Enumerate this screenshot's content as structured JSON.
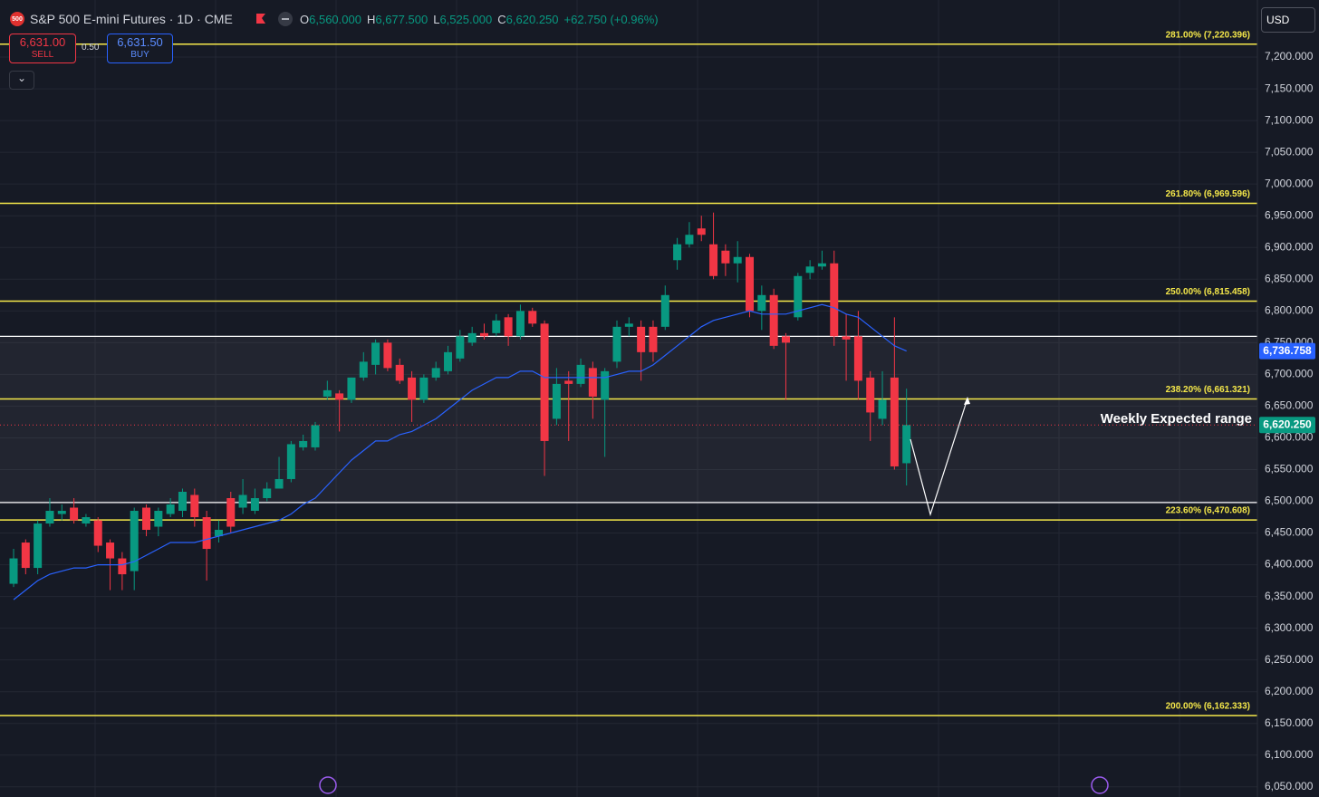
{
  "header": {
    "logo": "500",
    "symbol": "S&P 500 E-mini Futures · 1D · CME",
    "ohlc": [
      {
        "key": "O",
        "value": "6,560.000"
      },
      {
        "key": "H",
        "value": "6,677.500"
      },
      {
        "key": "L",
        "value": "6,525.000"
      },
      {
        "key": "C",
        "value": "6,620.250"
      }
    ],
    "change": "+62.750 (+0.96%)"
  },
  "trade": {
    "sell_price": "6,631.00",
    "sell": "SELL",
    "spread": "0.50",
    "buy_price": "6,631.50",
    "buy": "BUY"
  },
  "currency": "USD",
  "chart_data": {
    "type": "candlestick",
    "up_color": "#089981",
    "down_color": "#f23645",
    "open": [
      6370,
      6435,
      6395,
      6465,
      6480,
      6490,
      6465,
      6470,
      6435,
      6410,
      6390,
      6490,
      6460,
      6480,
      6485,
      6510,
      6475,
      6445,
      6505,
      6490,
      6485,
      6505,
      6520,
      6535,
      6585,
      6585,
      6665,
      6670,
      6660,
      6695,
      6715,
      6750,
      6715,
      6695,
      6660,
      6695,
      6705,
      6725,
      6750,
      6765,
      6765,
      6790,
      6760,
      6800,
      6780,
      6630,
      6690,
      6685,
      6710,
      6660,
      6720,
      6775,
      6775,
      6775,
      6775,
      6880,
      6905,
      6930,
      6905,
      6895,
      6875,
      6885,
      6800,
      6825,
      6760,
      6790,
      6860,
      6870,
      6875,
      6760,
      6760,
      6695,
      6630,
      6695,
      6560
    ],
    "high": [
      6425,
      6440,
      6470,
      6505,
      6495,
      6505,
      6480,
      6475,
      6440,
      6420,
      6490,
      6495,
      6490,
      6505,
      6520,
      6520,
      6485,
      6470,
      6515,
      6535,
      6520,
      6530,
      6570,
      6595,
      6605,
      6625,
      6690,
      6675,
      6695,
      6735,
      6755,
      6755,
      6725,
      6705,
      6700,
      6720,
      6745,
      6770,
      6775,
      6780,
      6795,
      6795,
      6810,
      6805,
      6785,
      6710,
      6705,
      6725,
      6720,
      6710,
      6785,
      6790,
      6785,
      6785,
      6840,
      6915,
      6940,
      6950,
      6955,
      6905,
      6910,
      6890,
      6840,
      6835,
      6765,
      6860,
      6880,
      6895,
      6895,
      6795,
      6800,
      6705,
      6705,
      6790,
      6677.5
    ],
    "low": [
      6365,
      6385,
      6385,
      6460,
      6470,
      6465,
      6460,
      6420,
      6360,
      6360,
      6360,
      6445,
      6445,
      6475,
      6475,
      6460,
      6375,
      6435,
      6450,
      6480,
      6480,
      6500,
      6520,
      6530,
      6580,
      6580,
      6660,
      6610,
      6655,
      6690,
      6700,
      6705,
      6685,
      6625,
      6655,
      6690,
      6700,
      6720,
      6745,
      6755,
      6760,
      6745,
      6755,
      6775,
      6540,
      6620,
      6595,
      6680,
      6630,
      6570,
      6710,
      6760,
      6690,
      6720,
      6770,
      6865,
      6900,
      6910,
      6850,
      6855,
      6845,
      6790,
      6770,
      6740,
      6660,
      6785,
      6850,
      6865,
      6745,
      6690,
      6660,
      6595,
      6620,
      6550,
      6525
    ],
    "close": [
      6410,
      6395,
      6465,
      6485,
      6485,
      6470,
      6475,
      6430,
      6410,
      6385,
      6485,
      6455,
      6485,
      6495,
      6515,
      6475,
      6425,
      6455,
      6460,
      6510,
      6505,
      6520,
      6535,
      6590,
      6595,
      6620,
      6675,
      6660,
      6695,
      6720,
      6750,
      6710,
      6690,
      6660,
      6695,
      6710,
      6735,
      6760,
      6765,
      6760,
      6785,
      6760,
      6800,
      6780,
      6595,
      6685,
      6685,
      6715,
      6665,
      6705,
      6775,
      6780,
      6735,
      6735,
      6825,
      6905,
      6920,
      6920,
      6855,
      6875,
      6885,
      6800,
      6825,
      6745,
      6750,
      6855,
      6870,
      6875,
      6760,
      6755,
      6690,
      6640,
      6660,
      6555,
      6620.25
    ],
    "ma": {
      "color": "#2962ff",
      "values": [
        6345,
        6360,
        6375,
        6385,
        6390,
        6395,
        6395,
        6400,
        6400,
        6400,
        6405,
        6415,
        6425,
        6435,
        6435,
        6435,
        6440,
        6445,
        6450,
        6455,
        6460,
        6465,
        6470,
        6480,
        6495,
        6505,
        6525,
        6545,
        6565,
        6580,
        6595,
        6595,
        6605,
        6610,
        6620,
        6630,
        6645,
        6660,
        6675,
        6685,
        6695,
        6695,
        6705,
        6705,
        6695,
        6695,
        6695,
        6695,
        6695,
        6695,
        6700,
        6705,
        6705,
        6715,
        6730,
        6745,
        6760,
        6775,
        6785,
        6790,
        6795,
        6800,
        6795,
        6795,
        6795,
        6800,
        6805,
        6810,
        6805,
        6795,
        6790,
        6775,
        6760,
        6745,
        6736.758
      ]
    },
    "levels": [
      {
        "label": "281.00% (7,220.396)",
        "value": 7220.396
      },
      {
        "label": "261.80% (6,969.596)",
        "value": 6969.596
      },
      {
        "label": "250.00% (6,815.458)",
        "value": 6815.458
      },
      {
        "label": "238.20% (6,661.321)",
        "value": 6661.321
      },
      {
        "label": "223.60% (6,470.608)",
        "value": 6470.608
      },
      {
        "label": "200.00% (6,162.333)",
        "value": 6162.333
      }
    ],
    "level_color": "#f5e84a",
    "range": {
      "label": "Weekly Expected range",
      "values": [
        6760,
        6498
      ]
    },
    "price_labels": [
      {
        "value": 6736.758,
        "label": "6,736.758",
        "color": "#2962ff"
      },
      {
        "value": 6620.25,
        "label": "6,620.250",
        "color": "#089981"
      }
    ],
    "ylim": [
      6034,
      7290
    ],
    "yticks": [
      {
        "value": 6050,
        "label": "6,050.000"
      },
      {
        "value": 6100,
        "label": "6,100.000"
      },
      {
        "value": 6150,
        "label": "6,150.000"
      },
      {
        "value": 6200,
        "label": "6,200.000"
      },
      {
        "value": 6250,
        "label": "6,250.000"
      },
      {
        "value": 6300,
        "label": "6,300.000"
      },
      {
        "value": 6350,
        "label": "6,350.000"
      },
      {
        "value": 6400,
        "label": "6,400.000"
      },
      {
        "value": 6450,
        "label": "6,450.000"
      },
      {
        "value": 6500,
        "label": "6,500.000"
      },
      {
        "value": 6550,
        "label": "6,550.000"
      },
      {
        "value": 6600,
        "label": "6,600.000"
      },
      {
        "value": 6650,
        "label": "6,650.000"
      },
      {
        "value": 6700,
        "label": "6,700.000"
      },
      {
        "value": 6750,
        "label": "6,750.000"
      },
      {
        "value": 6800,
        "label": "6,800.000"
      },
      {
        "value": 6850,
        "label": "6,850.000"
      },
      {
        "value": 6900,
        "label": "6,900.000"
      },
      {
        "value": 6950,
        "label": "6,950.000"
      },
      {
        "value": 7000,
        "label": "7,000.000"
      },
      {
        "value": 7050,
        "label": "7,050.000"
      },
      {
        "value": 7100,
        "label": "7,100.000"
      },
      {
        "value": 7150,
        "label": "7,150.000"
      },
      {
        "value": 7200,
        "label": "7,200.000"
      }
    ],
    "grid": true
  }
}
